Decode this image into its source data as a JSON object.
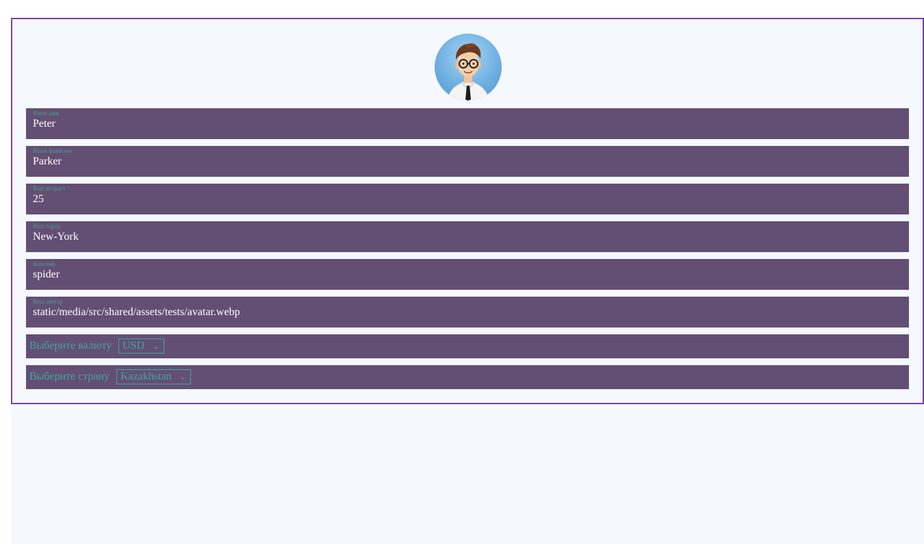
{
  "profile": {
    "fields": [
      {
        "label": "Ваше имя",
        "value": "Peter"
      },
      {
        "label": "Ваша фамилия",
        "value": "Parker"
      },
      {
        "label": "Ваш возраст",
        "value": "25"
      },
      {
        "label": "Ваш город",
        "value": "New-York"
      },
      {
        "label": "Ваш ник",
        "value": "spider"
      },
      {
        "label": "Ваш аватар",
        "value": "static/media/src/shared/assets/tests/avatar.webp"
      }
    ],
    "currency": {
      "label": "Выберите валюту",
      "selected": "USD"
    },
    "country": {
      "label": "Выберите страну",
      "selected": "Kazakhstan"
    }
  },
  "icons": {
    "avatar": "user-avatar-illustration",
    "chevron": "chevron-down-icon"
  },
  "colors": {
    "card_border": "#7a3fb0",
    "field_bg": "#634f73",
    "accent_text": "#3fa79a",
    "page_bg": "#f5f8fd"
  }
}
